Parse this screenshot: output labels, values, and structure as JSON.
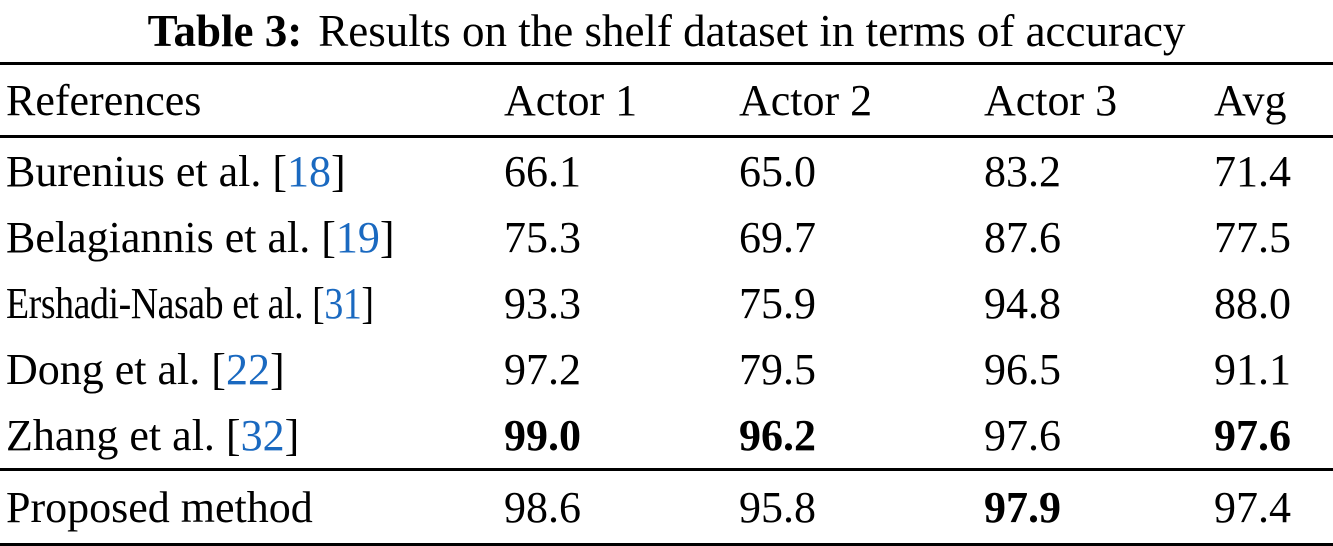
{
  "caption": {
    "label": "Table 3:",
    "text": "Results on the shelf dataset in terms of accuracy"
  },
  "table": {
    "headers": [
      "References",
      "Actor 1",
      "Actor 2",
      "Actor 3",
      "Avg"
    ],
    "bracket_open": "[",
    "bracket_close": "]",
    "rows": [
      {
        "name": "Burenius et al.",
        "cite": "18",
        "values": [
          "66.1",
          "65.0",
          "83.2",
          "71.4"
        ],
        "bold": [
          false,
          false,
          false,
          false
        ],
        "condensed": false
      },
      {
        "name": "Belagiannis et al.",
        "cite": "19",
        "values": [
          "75.3",
          "69.7",
          "87.6",
          "77.5"
        ],
        "bold": [
          false,
          false,
          false,
          false
        ],
        "condensed": false
      },
      {
        "name": "Ershadi-Nasab et al.",
        "cite": "31",
        "values": [
          "93.3",
          "75.9",
          "94.8",
          "88.0"
        ],
        "bold": [
          false,
          false,
          false,
          false
        ],
        "condensed": true
      },
      {
        "name": "Dong et al.",
        "cite": "22",
        "values": [
          "97.2",
          "79.5",
          "96.5",
          "91.1"
        ],
        "bold": [
          false,
          false,
          false,
          false
        ],
        "condensed": false
      },
      {
        "name": "Zhang et al.",
        "cite": "32",
        "values": [
          "99.0",
          "96.2",
          "97.6",
          "97.6"
        ],
        "bold": [
          true,
          true,
          false,
          true
        ],
        "condensed": false
      }
    ],
    "footer_row": {
      "name": "Proposed method",
      "values": [
        "98.6",
        "95.8",
        "97.9",
        "97.4"
      ],
      "bold": [
        false,
        false,
        true,
        false
      ]
    }
  },
  "colors": {
    "citation": "#1a69c0",
    "text": "#000000",
    "background": "#ffffff"
  }
}
